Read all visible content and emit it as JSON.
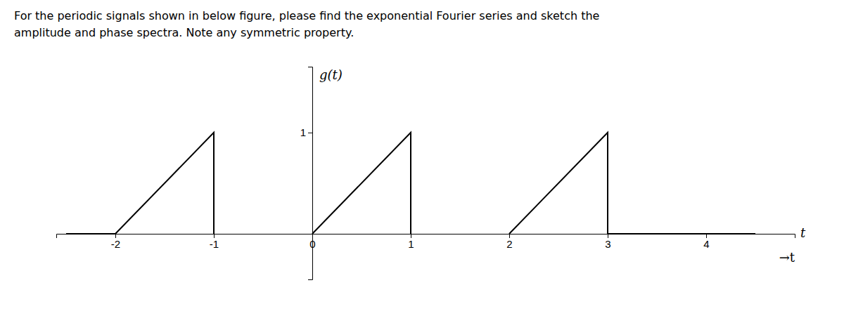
{
  "chart_data": {
    "type": "line",
    "title": "For the periodic signals shown in below figure, please find the exponential Fourier series and sketch the\namplitude and phase spectra. Note any symmetric property.",
    "x_label": "t",
    "y_label": "g(t)",
    "annotations": [
      "→t"
    ],
    "color": "#000000",
    "series": [
      {
        "x": [
          -2,
          -1,
          -1
        ],
        "values": [
          0,
          1,
          0
        ]
      },
      {
        "x": [
          0,
          1,
          1
        ],
        "values": [
          0,
          1,
          0
        ]
      },
      {
        "x": [
          2,
          3,
          3
        ],
        "values": [
          0,
          1,
          0
        ]
      },
      {
        "x": [
          -2.5,
          -2
        ],
        "values": [
          0,
          0
        ]
      },
      {
        "x": [
          3,
          4.5
        ],
        "values": [
          0,
          0
        ]
      }
    ],
    "xlim": [
      -2.6,
      4.9
    ],
    "ylim": [
      -0.45,
      1.65
    ],
    "xticks": [
      -2,
      -1,
      0,
      1,
      2,
      3,
      4
    ],
    "yticks": [
      1
    ],
    "grid": false
  }
}
